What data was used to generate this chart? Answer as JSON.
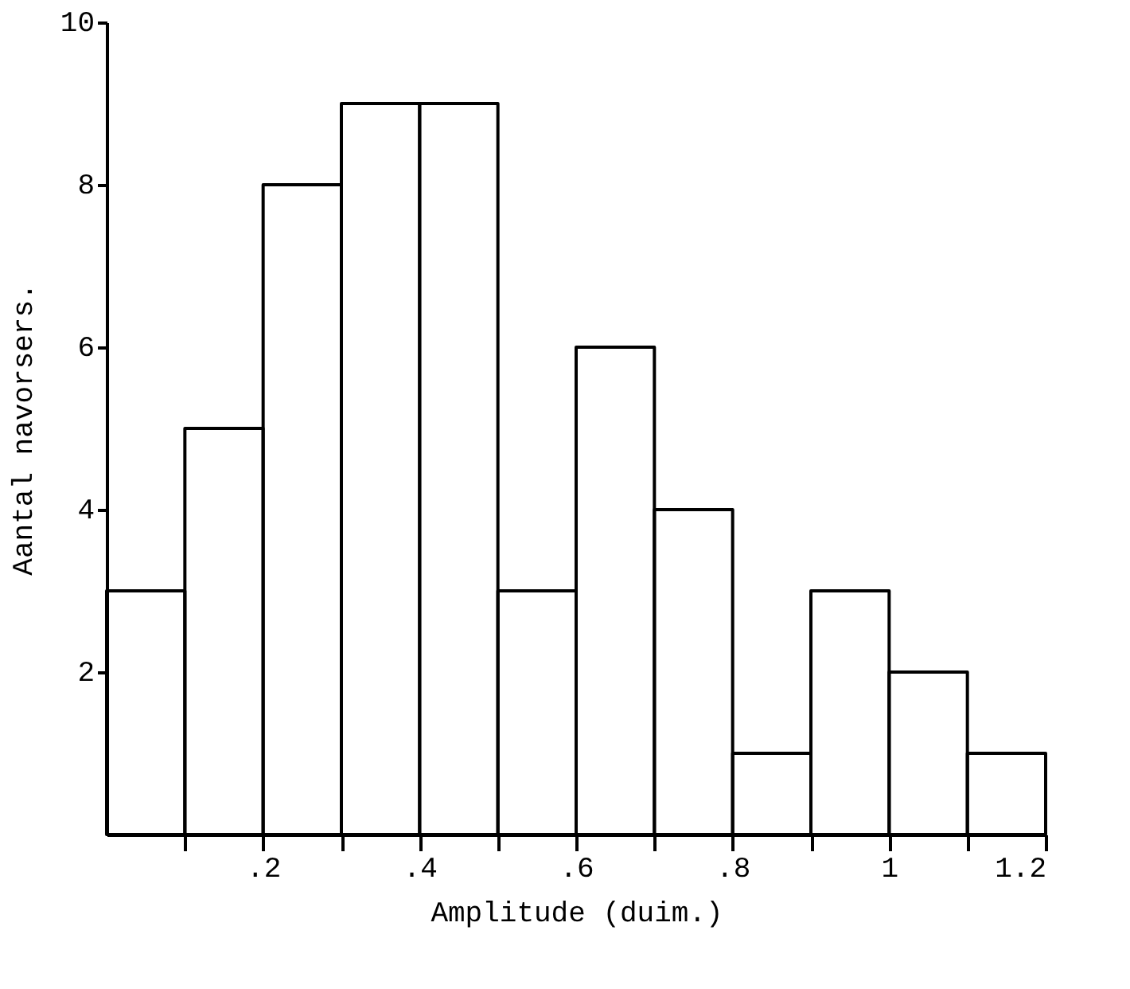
{
  "chart_data": {
    "type": "histogram",
    "xlabel": "Amplitude (duim.)",
    "ylabel": "Aantal navorsers.",
    "bins": [
      0,
      0.1,
      0.2,
      0.3,
      0.4,
      0.5,
      0.6,
      0.7,
      0.8,
      0.9,
      1.0,
      1.1,
      1.2
    ],
    "values": [
      3,
      5,
      8,
      9,
      9,
      3,
      6,
      4,
      1,
      3,
      2,
      1
    ],
    "color": "#000000",
    "xlim": [
      0,
      1.2
    ],
    "xticks": [
      {
        "value": 0.1,
        "label": null
      },
      {
        "value": 0.2,
        "label": ".2"
      },
      {
        "value": 0.3,
        "label": null
      },
      {
        "value": 0.4,
        "label": ".4"
      },
      {
        "value": 0.5,
        "label": null
      },
      {
        "value": 0.6,
        "label": ".6"
      },
      {
        "value": 0.7,
        "label": null
      },
      {
        "value": 0.8,
        "label": ".8"
      },
      {
        "value": 0.9,
        "label": null
      },
      {
        "value": 1,
        "label": "1"
      },
      {
        "value": 1.1,
        "label": null
      },
      {
        "value": 1.2,
        "label": "1.2"
      }
    ],
    "ylim": [
      0,
      10
    ],
    "yticks": [
      2,
      4,
      6,
      8,
      10
    ],
    "grid": false
  }
}
